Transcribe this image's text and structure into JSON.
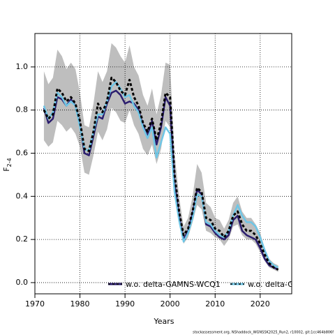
{
  "chart_data": {
    "type": "line",
    "xlabel": "Years",
    "ylabel": "F",
    "ylabel_sub": "2-4",
    "footer": "stockassessment.org, NShaddock_WGNSSK2025_Run2, r10002, git:1cc464b806f",
    "x": [
      1972,
      1973,
      1974,
      1975,
      1976,
      1977,
      1978,
      1979,
      1980,
      1981,
      1982,
      1983,
      1984,
      1985,
      1986,
      1987,
      1988,
      1989,
      1990,
      1991,
      1992,
      1993,
      1994,
      1995,
      1996,
      1997,
      1998,
      1999,
      2000,
      2001,
      2002,
      2003,
      2004,
      2005,
      2006,
      2007,
      2008,
      2009,
      2010,
      2011,
      2012,
      2013,
      2014,
      2015,
      2016,
      2017,
      2018,
      2019,
      2020,
      2021,
      2022,
      2023,
      2024
    ],
    "band_color": "#bebebe",
    "ci_low": [
      0.66,
      0.63,
      0.65,
      0.75,
      0.73,
      0.7,
      0.72,
      0.69,
      0.63,
      0.51,
      0.5,
      0.59,
      0.7,
      0.66,
      0.71,
      0.81,
      0.79,
      0.75,
      0.74,
      0.8,
      0.73,
      0.69,
      0.62,
      0.59,
      0.64,
      0.55,
      0.62,
      0.75,
      0.72,
      0.41,
      0.27,
      0.18,
      0.21,
      0.28,
      0.36,
      0.34,
      0.24,
      0.23,
      0.21,
      0.2,
      0.17,
      0.2,
      0.26,
      0.27,
      0.22,
      0.2,
      0.2,
      0.18,
      0.14,
      0.1,
      0.07,
      0.06,
      0.05
    ],
    "ci_high": [
      0.98,
      0.92,
      0.95,
      1.08,
      1.05,
      0.99,
      1.02,
      0.99,
      0.88,
      0.73,
      0.72,
      0.83,
      0.98,
      0.93,
      0.98,
      1.11,
      1.09,
      1.05,
      1.02,
      1.1,
      1.0,
      0.96,
      0.87,
      0.82,
      0.9,
      0.78,
      0.87,
      1.02,
      1.01,
      0.6,
      0.4,
      0.26,
      0.3,
      0.4,
      0.55,
      0.51,
      0.37,
      0.35,
      0.3,
      0.29,
      0.25,
      0.29,
      0.37,
      0.4,
      0.33,
      0.3,
      0.3,
      0.27,
      0.23,
      0.16,
      0.11,
      0.09,
      0.08
    ],
    "series": [
      {
        "name": "w.o. delta-GAMNS-WCQ1",
        "color": "#2b1d6e",
        "values": [
          0.81,
          0.74,
          0.76,
          0.86,
          0.85,
          0.82,
          0.85,
          0.82,
          0.73,
          0.6,
          0.59,
          0.68,
          0.77,
          0.76,
          0.83,
          0.88,
          0.89,
          0.87,
          0.83,
          0.84,
          0.83,
          0.8,
          0.73,
          0.68,
          0.75,
          0.64,
          0.72,
          0.86,
          0.82,
          0.46,
          0.31,
          0.2,
          0.24,
          0.32,
          0.43,
          0.41,
          0.27,
          0.26,
          0.23,
          0.21,
          0.2,
          0.22,
          0.29,
          0.31,
          0.24,
          0.22,
          0.21,
          0.2,
          0.16,
          0.11,
          0.08,
          0.07,
          0.06
        ]
      },
      {
        "name": "w.o. delta-GAI",
        "color": "#6ec6e6",
        "values": [
          0.82,
          0.76,
          0.79,
          0.88,
          0.86,
          0.82,
          0.84,
          0.82,
          0.72,
          0.62,
          0.61,
          0.7,
          0.78,
          0.78,
          0.84,
          0.91,
          0.93,
          0.9,
          0.86,
          0.87,
          0.82,
          0.79,
          0.72,
          0.67,
          0.72,
          0.58,
          0.65,
          0.72,
          0.69,
          0.42,
          0.29,
          0.19,
          0.23,
          0.3,
          0.41,
          0.4,
          0.28,
          0.27,
          0.24,
          0.22,
          0.21,
          0.24,
          0.31,
          0.36,
          0.31,
          0.28,
          0.28,
          0.26,
          0.21,
          0.15,
          0.1,
          0.08,
          0.07
        ]
      },
      {
        "color": "#000000",
        "dashed": true,
        "values": [
          0.8,
          0.76,
          0.78,
          0.9,
          0.88,
          0.84,
          0.86,
          0.83,
          0.75,
          0.62,
          0.61,
          0.7,
          0.83,
          0.79,
          0.84,
          0.95,
          0.93,
          0.89,
          0.87,
          0.94,
          0.86,
          0.82,
          0.74,
          0.7,
          0.76,
          0.66,
          0.74,
          0.88,
          0.86,
          0.5,
          0.33,
          0.22,
          0.25,
          0.33,
          0.44,
          0.42,
          0.3,
          0.29,
          0.25,
          0.24,
          0.21,
          0.24,
          0.31,
          0.33,
          0.27,
          0.24,
          0.24,
          0.22,
          0.18,
          0.13,
          0.09,
          0.07,
          0.06
        ]
      }
    ],
    "xlim": [
      1970,
      2027
    ],
    "ylim": [
      -0.052,
      1.155
    ],
    "xticks": [
      1970,
      1980,
      1990,
      2000,
      2010,
      2020
    ],
    "yticks": [
      {
        "value": 0,
        "label": "0.0"
      },
      {
        "value": 0.2,
        "label": "0.2"
      },
      {
        "value": 0.4,
        "label": "0.4"
      },
      {
        "value": 0.6,
        "label": "0.6"
      },
      {
        "value": 0.8,
        "label": "0.8"
      },
      {
        "value": 1,
        "label": "1.0"
      }
    ],
    "grid": true,
    "legend": "bottom"
  }
}
